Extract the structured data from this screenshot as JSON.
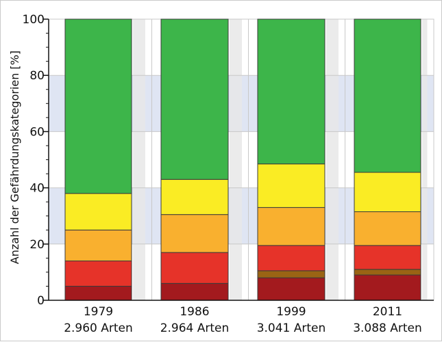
{
  "chart_data": {
    "type": "bar",
    "stacked": true,
    "ylabel": "Anzahl der Gefährdungskategorien [%]",
    "ylim": [
      0,
      100
    ],
    "yticks": [
      0,
      20,
      40,
      60,
      80,
      100
    ],
    "grid": true,
    "categories": [
      "1979",
      "1986",
      "1999",
      "2011"
    ],
    "subcategories": [
      "2.960 Arten",
      "2.964 Arten",
      "3.041 Arten",
      "3.088 Arten"
    ],
    "series": [
      {
        "values": [
          5,
          6,
          8,
          9
        ],
        "color": "#a31a1e"
      },
      {
        "values": [
          0,
          0,
          2.5,
          2
        ],
        "color": "#9a6414"
      },
      {
        "values": [
          9,
          11,
          9,
          8.5
        ],
        "color": "#e63329"
      },
      {
        "values": [
          11,
          13.5,
          13.5,
          12
        ],
        "color": "#f9b02f"
      },
      {
        "values": [
          13,
          12.5,
          15.5,
          14
        ],
        "color": "#faec24"
      },
      {
        "values": [
          62,
          57,
          51.5,
          54.5
        ],
        "color": "#3db54a"
      }
    ],
    "colors": {
      "band": "#dfe5f3",
      "stripe": "#e8e8e8",
      "grid": "#c8c8c8",
      "outline": "#3a3a3a"
    }
  }
}
